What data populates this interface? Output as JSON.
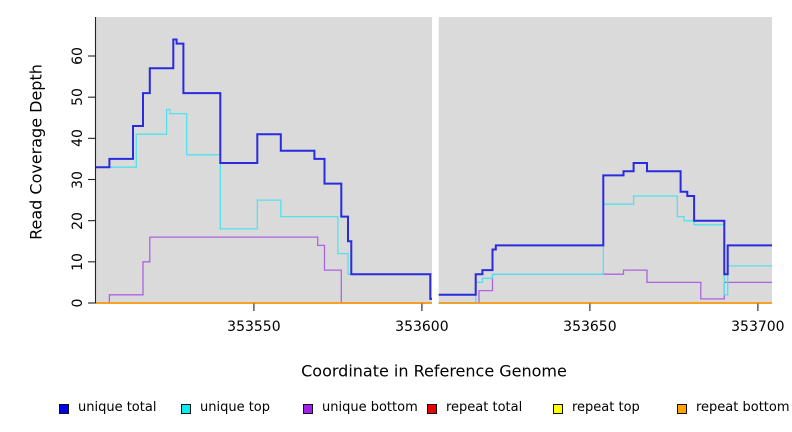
{
  "chart_data": {
    "type": "line",
    "subtype": "step-coverage-plot",
    "title": "",
    "xlabel": "Coordinate in Reference Genome",
    "ylabel": "Read Coverage Depth",
    "xlim": [
      353503,
      353704.2
    ],
    "ylim": [
      0,
      60
    ],
    "grid": false,
    "panel_bg": "#dadada",
    "gap_x": [
      353603,
      353605
    ],
    "x_ticks": [
      {
        "v": 353550,
        "label": "353550"
      },
      {
        "v": 353600,
        "label": "353600"
      },
      {
        "v": 353650,
        "label": "353650"
      },
      {
        "v": 353700,
        "label": "353700"
      }
    ],
    "y_ticks": [
      {
        "v": 0,
        "label": "0"
      },
      {
        "v": 10,
        "label": "10"
      },
      {
        "v": 20,
        "label": "20"
      },
      {
        "v": 30,
        "label": "30"
      },
      {
        "v": 40,
        "label": "40"
      },
      {
        "v": 50,
        "label": "50"
      },
      {
        "v": 60,
        "label": "60"
      }
    ],
    "series": [
      {
        "name": "repeat total",
        "color": "#dd0000",
        "lw": 1.3,
        "regions": [
          {
            "xend": 353603,
            "pts": [
              [
                353503,
                0
              ]
            ]
          },
          {
            "xend": 353704.2,
            "pts": [
              [
                353605,
                0
              ]
            ]
          }
        ]
      },
      {
        "name": "repeat top",
        "color": "#f2e400",
        "lw": 1.3,
        "regions": [
          {
            "xend": 353603,
            "pts": [
              [
                353503,
                0
              ]
            ]
          },
          {
            "xend": 353704.2,
            "pts": [
              [
                353605,
                0
              ]
            ]
          }
        ]
      },
      {
        "name": "unique bottom",
        "color": "#ad63e0",
        "lw": 1.3,
        "regions": [
          {
            "xend": 353603,
            "pts": [
              [
                353503,
                0
              ],
              [
                353507,
                2
              ],
              [
                353517,
                10
              ],
              [
                353519,
                16
              ],
              [
                353569,
                14
              ],
              [
                353571,
                8
              ],
              [
                353576,
                0
              ]
            ]
          },
          {
            "xend": 353704.2,
            "pts": [
              [
                353605,
                0
              ],
              [
                353617,
                3
              ],
              [
                353621,
                7
              ],
              [
                353660,
                8
              ],
              [
                353667,
                5
              ],
              [
                353683,
                1
              ],
              [
                353690,
                5
              ]
            ]
          }
        ]
      },
      {
        "name": "unique top",
        "color": "#52e2ec",
        "lw": 1.3,
        "regions": [
          {
            "xend": 353603,
            "pts": [
              [
                353503,
                33
              ],
              [
                353515,
                41
              ],
              [
                353524,
                47
              ],
              [
                353525,
                46
              ],
              [
                353530,
                36
              ],
              [
                353540,
                18
              ],
              [
                353551,
                25
              ],
              [
                353558,
                21
              ],
              [
                353575,
                12
              ],
              [
                353578,
                7
              ]
            ]
          },
          {
            "xend": 353704.2,
            "pts": [
              [
                353605,
                0
              ],
              [
                353616,
                5
              ],
              [
                353618,
                6
              ],
              [
                353621,
                7
              ],
              [
                353654,
                24
              ],
              [
                353663,
                26
              ],
              [
                353676,
                21
              ],
              [
                353678,
                20
              ],
              [
                353681,
                19
              ],
              [
                353690,
                2
              ],
              [
                353691,
                9
              ]
            ]
          }
        ]
      },
      {
        "name": "repeat bottom",
        "color": "#ff9d09",
        "lw": 1.6,
        "regions": [
          {
            "xend": 353603,
            "pts": [
              [
                353503,
                0
              ]
            ]
          },
          {
            "xend": 353704.2,
            "pts": [
              [
                353605,
                0
              ]
            ]
          }
        ]
      },
      {
        "name": "unique total",
        "color": "#2a2ade",
        "lw": 2,
        "regions": [
          {
            "xend": 353603,
            "pts": [
              [
                353503,
                33
              ],
              [
                353507,
                35
              ],
              [
                353514,
                43
              ],
              [
                353517,
                51
              ],
              [
                353519,
                57
              ],
              [
                353526,
                64
              ],
              [
                353527,
                63
              ],
              [
                353529,
                51
              ],
              [
                353540,
                34
              ],
              [
                353551,
                41
              ],
              [
                353558,
                37
              ],
              [
                353568,
                35
              ],
              [
                353571,
                29
              ],
              [
                353576,
                21
              ],
              [
                353578,
                15
              ],
              [
                353579,
                7
              ],
              [
                353602.5,
                1
              ]
            ]
          },
          {
            "xend": 353704.2,
            "pts": [
              [
                353605,
                2
              ],
              [
                353616,
                7
              ],
              [
                353618,
                8
              ],
              [
                353621,
                13
              ],
              [
                353622,
                14
              ],
              [
                353654,
                31
              ],
              [
                353660,
                32
              ],
              [
                353663,
                34
              ],
              [
                353667,
                32
              ],
              [
                353677,
                27
              ],
              [
                353679,
                26
              ],
              [
                353681,
                20
              ],
              [
                353690,
                7
              ],
              [
                353691,
                14
              ]
            ]
          }
        ]
      }
    ],
    "legend": [
      {
        "label": "unique total",
        "fill": "#0000ee"
      },
      {
        "label": "unique top",
        "fill": "#00eeee"
      },
      {
        "label": "unique bottom",
        "fill": "#a020f0"
      },
      {
        "label": "repeat total",
        "fill": "#ee0000"
      },
      {
        "label": "repeat top",
        "fill": "#ffff00"
      },
      {
        "label": "repeat bottom",
        "fill": "#ffa500"
      }
    ],
    "legend_position": "bottom"
  }
}
